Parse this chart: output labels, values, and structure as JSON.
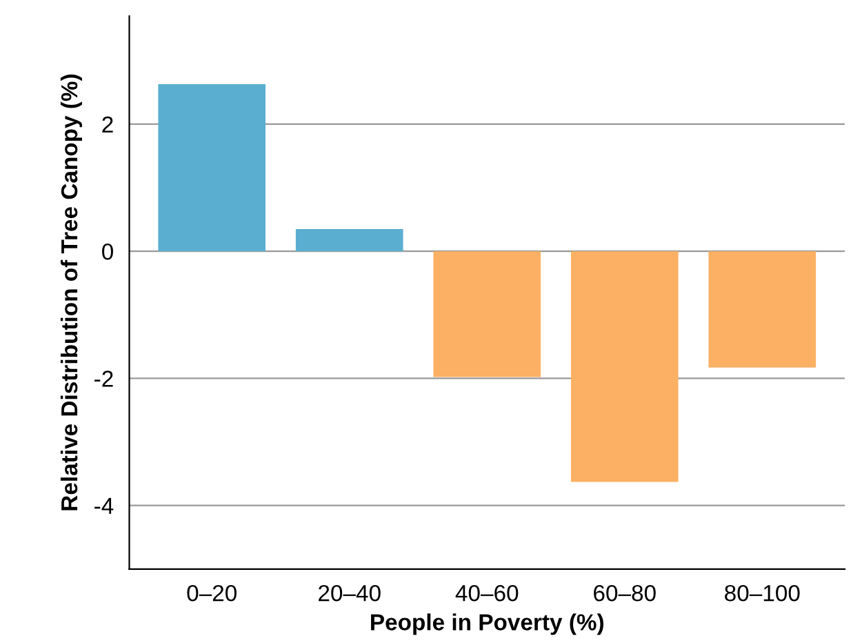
{
  "chart_data": {
    "type": "bar",
    "xlabel": "People in Poverty (%)",
    "ylabel": "Relative Distribution of Tree Canopy (%)",
    "categories": [
      "0–20",
      "20–40",
      "40–60",
      "60–80",
      "80–100"
    ],
    "values": [
      2.63,
      0.35,
      -1.98,
      -3.63,
      -1.83
    ],
    "colors": [
      "#5aafd1",
      "#5aafd1",
      "#fbb063",
      "#fbb063",
      "#fbb063"
    ],
    "ylim": [
      -5,
      3.7
    ],
    "yticks": [
      {
        "value": -4,
        "label": "-4"
      },
      {
        "value": -2,
        "label": "-2"
      },
      0,
      2
    ],
    "grid": "y"
  }
}
